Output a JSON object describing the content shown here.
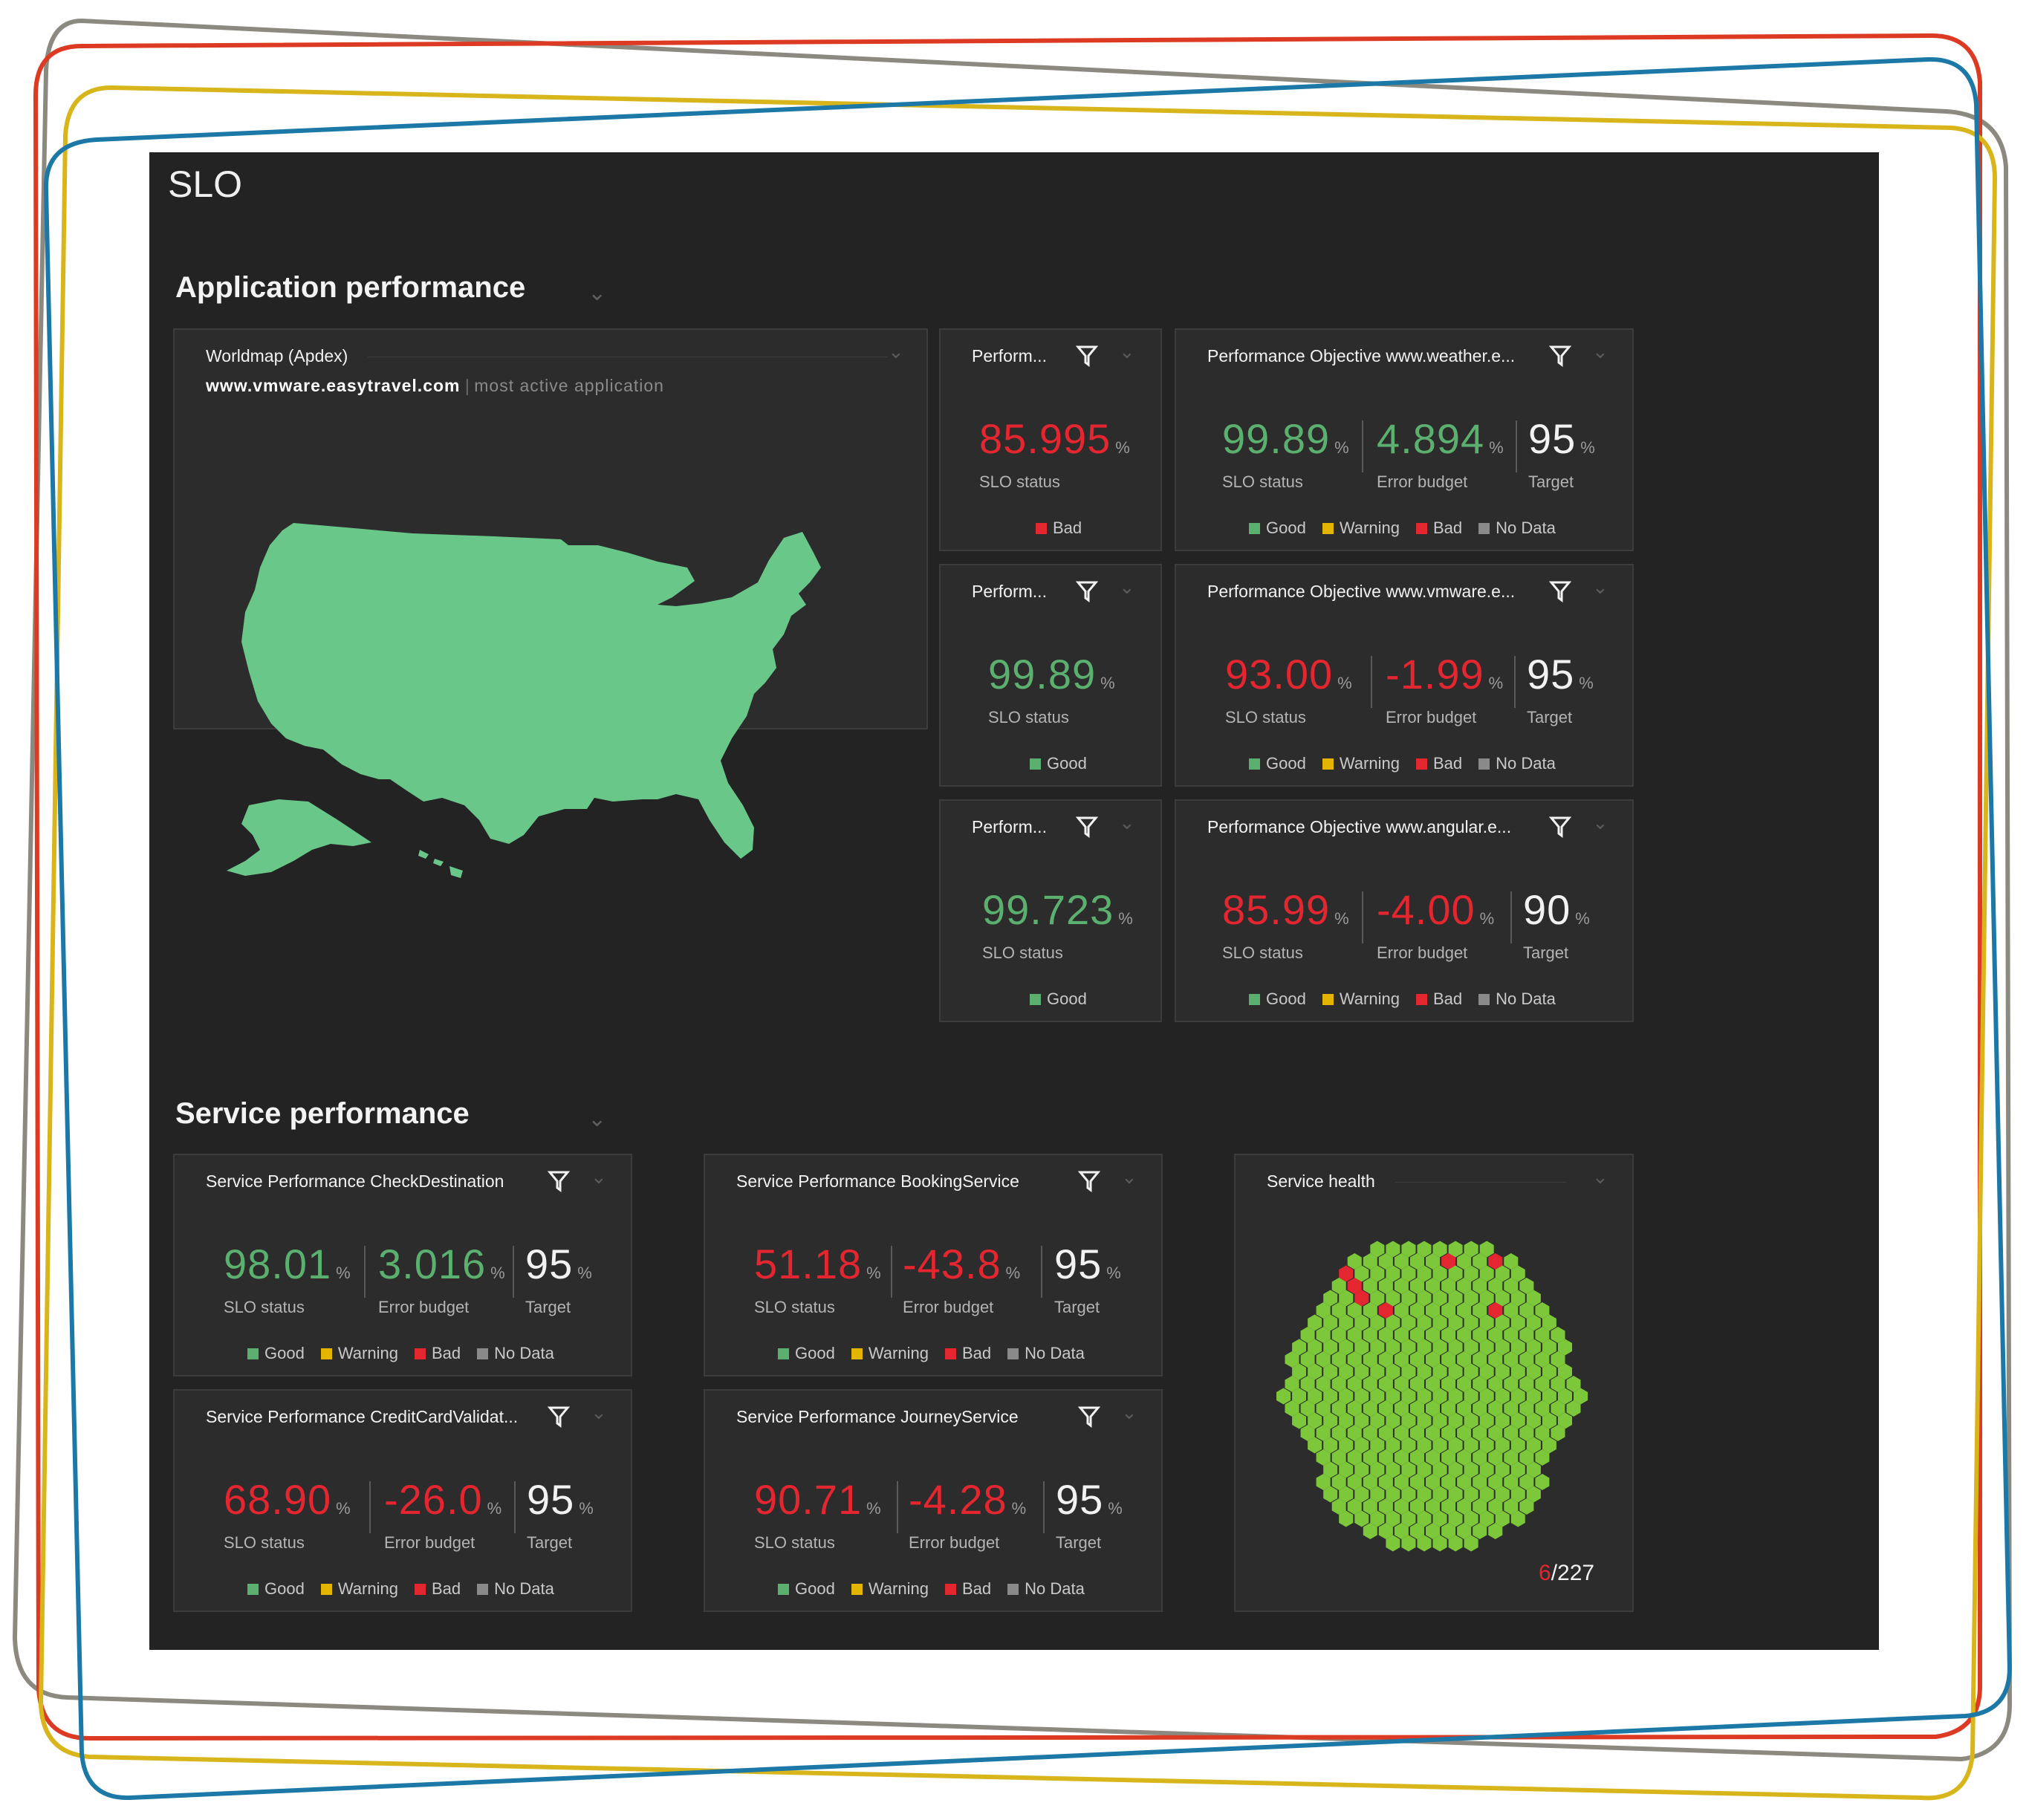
{
  "colors": {
    "good": "#5bb06f",
    "bad": "#e3262f",
    "warning": "#e3b400",
    "nodata": "#8a8a8a",
    "map_fill": "#6ac78a",
    "hex_ok": "#7cc73a",
    "hex_bad": "#e3262f",
    "frame_gray": "#8c8a80",
    "frame_red": "#dc3a22",
    "frame_yellow": "#d8b51a",
    "frame_blue": "#1c78a6"
  },
  "dashboard": {
    "title": "SLO"
  },
  "sections": {
    "app": {
      "title": "Application performance"
    },
    "service": {
      "title": "Service performance"
    }
  },
  "labels": {
    "pct": "%",
    "slo_status": "SLO status",
    "error_budget": "Error budget",
    "target": "Target",
    "good": "Good",
    "warning": "Warning",
    "bad": "Bad",
    "nodata": "No Data"
  },
  "worldmap": {
    "title": "Worldmap (Apdex)",
    "app_name": "www.vmware.easytravel.com",
    "separator": "|",
    "app_note": "most active application"
  },
  "small_tiles": [
    {
      "title": "Perform...",
      "value": "85.995",
      "status": "bad",
      "legend": "Bad"
    },
    {
      "title": "Perform...",
      "value": "99.89",
      "status": "good",
      "legend": "Good"
    },
    {
      "title": "Perform...",
      "value": "99.723",
      "status": "good",
      "legend": "Good"
    }
  ],
  "app_tiles": [
    {
      "title": "Performance Objective www.weather.e...",
      "slo": "99.89",
      "slo_status": "good",
      "budget": "4.894",
      "budget_status": "good",
      "target": "95"
    },
    {
      "title": "Performance Objective www.vmware.e...",
      "slo": "93.00",
      "slo_status": "bad",
      "budget": "-1.99",
      "budget_status": "bad",
      "target": "95"
    },
    {
      "title": "Performance Objective www.angular.e...",
      "slo": "85.99",
      "slo_status": "bad",
      "budget": "-4.00",
      "budget_status": "bad",
      "target": "90"
    }
  ],
  "service_tiles": [
    {
      "title": "Service Performance CheckDestination",
      "slo": "98.01",
      "slo_status": "good",
      "budget": "3.016",
      "budget_status": "good",
      "target": "95"
    },
    {
      "title": "Service Performance BookingService",
      "slo": "51.18",
      "slo_status": "bad",
      "budget": "-43.8",
      "budget_status": "bad",
      "target": "95"
    },
    {
      "title": "Service Performance CreditCardValidat...",
      "slo": "68.90",
      "slo_status": "bad",
      "budget": "-26.0",
      "budget_status": "bad",
      "target": "95"
    },
    {
      "title": "Service Performance JourneyService",
      "slo": "90.71",
      "slo_status": "bad",
      "budget": "-4.28",
      "budget_status": "bad",
      "target": "95"
    }
  ],
  "service_health": {
    "title": "Service health",
    "problem_count": "6",
    "total_count": "/227"
  }
}
